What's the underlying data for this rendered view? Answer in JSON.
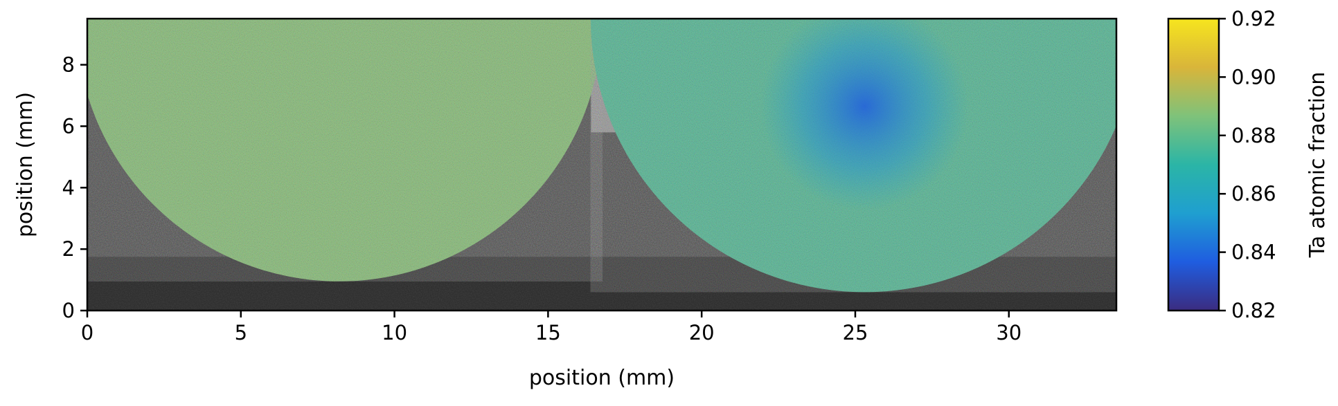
{
  "chart_data": {
    "type": "heatmap",
    "title": "",
    "xlabel": "position (mm)",
    "ylabel": "position (mm)",
    "xlim": [
      0,
      33.5
    ],
    "ylim": [
      0,
      9.5
    ],
    "x_ticks": [
      0,
      5,
      10,
      15,
      20,
      25,
      30
    ],
    "y_ticks": [
      0,
      2,
      4,
      6,
      8
    ],
    "colorbar": {
      "label": "Ta atomic fraction",
      "range": [
        0.82,
        0.92
      ],
      "ticks": [
        "0.82",
        "0.84",
        "0.86",
        "0.88",
        "0.90",
        "0.92"
      ],
      "colormap": [
        "#3b2c80",
        "#1f5de0",
        "#1f9fd0",
        "#2bb5a6",
        "#7fc27a",
        "#d9b53a",
        "#f6e51e"
      ]
    },
    "regions": [
      {
        "shape": "semicircle",
        "center_x": 8.2,
        "top_y": 9.5,
        "bottom_y": 0.95,
        "mean_ta_fraction": 0.888
      },
      {
        "shape": "semicircle",
        "center_x": 25.3,
        "top_y": 9.5,
        "bottom_y": 0.6,
        "mean_ta_fraction": 0.877,
        "low_zone_near_top_ta_fraction": 0.84
      }
    ],
    "background": "grayscale optical micrograph",
    "grid": false
  }
}
